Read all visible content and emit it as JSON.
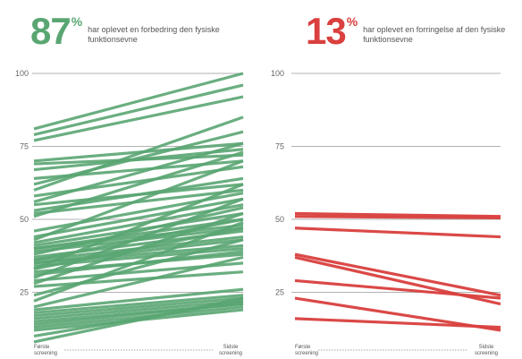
{
  "colors": {
    "improved": "#5aa673",
    "worsened": "#d9403e",
    "grid": "#666666",
    "dotted": "#888888"
  },
  "chart_data": [
    {
      "type": "line",
      "headline_value": "87",
      "headline_unit": "%",
      "description": "har oplevet en forbedring den fysiske funktionsevne",
      "x": [
        "Første screening",
        "Sidste screening"
      ],
      "ylim": [
        0,
        100
      ],
      "yticks": [
        "25",
        "50",
        "75",
        "100"
      ],
      "series": [
        {
          "values": [
            81,
            100
          ]
        },
        {
          "values": [
            79,
            96
          ]
        },
        {
          "values": [
            77,
            92
          ]
        },
        {
          "values": [
            70,
            76
          ]
        },
        {
          "values": [
            69,
            72
          ]
        },
        {
          "values": [
            67,
            74
          ]
        },
        {
          "values": [
            64,
            70
          ]
        },
        {
          "values": [
            62,
            80
          ]
        },
        {
          "values": [
            60,
            85
          ]
        },
        {
          "values": [
            58,
            68
          ]
        },
        {
          "values": [
            56,
            76
          ]
        },
        {
          "values": [
            55,
            62
          ]
        },
        {
          "values": [
            53,
            64
          ]
        },
        {
          "values": [
            52,
            60
          ]
        },
        {
          "values": [
            51,
            73
          ]
        },
        {
          "values": [
            46,
            59
          ]
        },
        {
          "values": [
            44,
            57
          ]
        },
        {
          "values": [
            43,
            70
          ]
        },
        {
          "values": [
            42,
            55
          ]
        },
        {
          "values": [
            41,
            52
          ]
        },
        {
          "values": [
            40,
            50
          ]
        },
        {
          "values": [
            40,
            48
          ]
        },
        {
          "values": [
            39,
            47
          ]
        },
        {
          "values": [
            38,
            54
          ]
        },
        {
          "values": [
            37,
            46
          ]
        },
        {
          "values": [
            36,
            44
          ]
        },
        {
          "values": [
            36,
            50
          ]
        },
        {
          "values": [
            35,
            43
          ]
        },
        {
          "values": [
            35,
            41
          ]
        },
        {
          "values": [
            34,
            40
          ]
        },
        {
          "values": [
            33,
            62
          ]
        },
        {
          "values": [
            33,
            47
          ]
        },
        {
          "values": [
            32,
            38
          ]
        },
        {
          "values": [
            31,
            39
          ]
        },
        {
          "values": [
            30,
            57
          ]
        },
        {
          "values": [
            29,
            35
          ]
        },
        {
          "values": [
            28,
            52
          ]
        },
        {
          "values": [
            27,
            32
          ]
        },
        {
          "values": [
            24,
            43
          ]
        },
        {
          "values": [
            22,
            49
          ]
        },
        {
          "values": [
            20,
            37
          ]
        },
        {
          "values": [
            19,
            26
          ]
        },
        {
          "values": [
            18,
            24
          ]
        },
        {
          "values": [
            17,
            23
          ]
        },
        {
          "values": [
            16,
            22
          ]
        },
        {
          "values": [
            15,
            21
          ]
        },
        {
          "values": [
            14,
            21
          ]
        },
        {
          "values": [
            13,
            20
          ]
        },
        {
          "values": [
            12,
            19
          ]
        },
        {
          "values": [
            10,
            22
          ]
        },
        {
          "values": [
            8,
            23
          ]
        }
      ]
    },
    {
      "type": "line",
      "headline_value": "13",
      "headline_unit": "%",
      "description": "har oplevet en forringelse af den fysiske funktionsevne",
      "x": [
        "Første screening",
        "Sidste screening"
      ],
      "ylim": [
        0,
        100
      ],
      "yticks": [
        "25",
        "50",
        "75",
        "100"
      ],
      "series": [
        {
          "values": [
            52,
            51
          ]
        },
        {
          "values": [
            51,
            50.5
          ]
        },
        {
          "values": [
            47,
            44
          ]
        },
        {
          "values": [
            38,
            24
          ]
        },
        {
          "values": [
            37,
            21
          ]
        },
        {
          "values": [
            29,
            23
          ]
        },
        {
          "values": [
            23,
            12
          ]
        },
        {
          "values": [
            16,
            13
          ]
        }
      ]
    }
  ]
}
